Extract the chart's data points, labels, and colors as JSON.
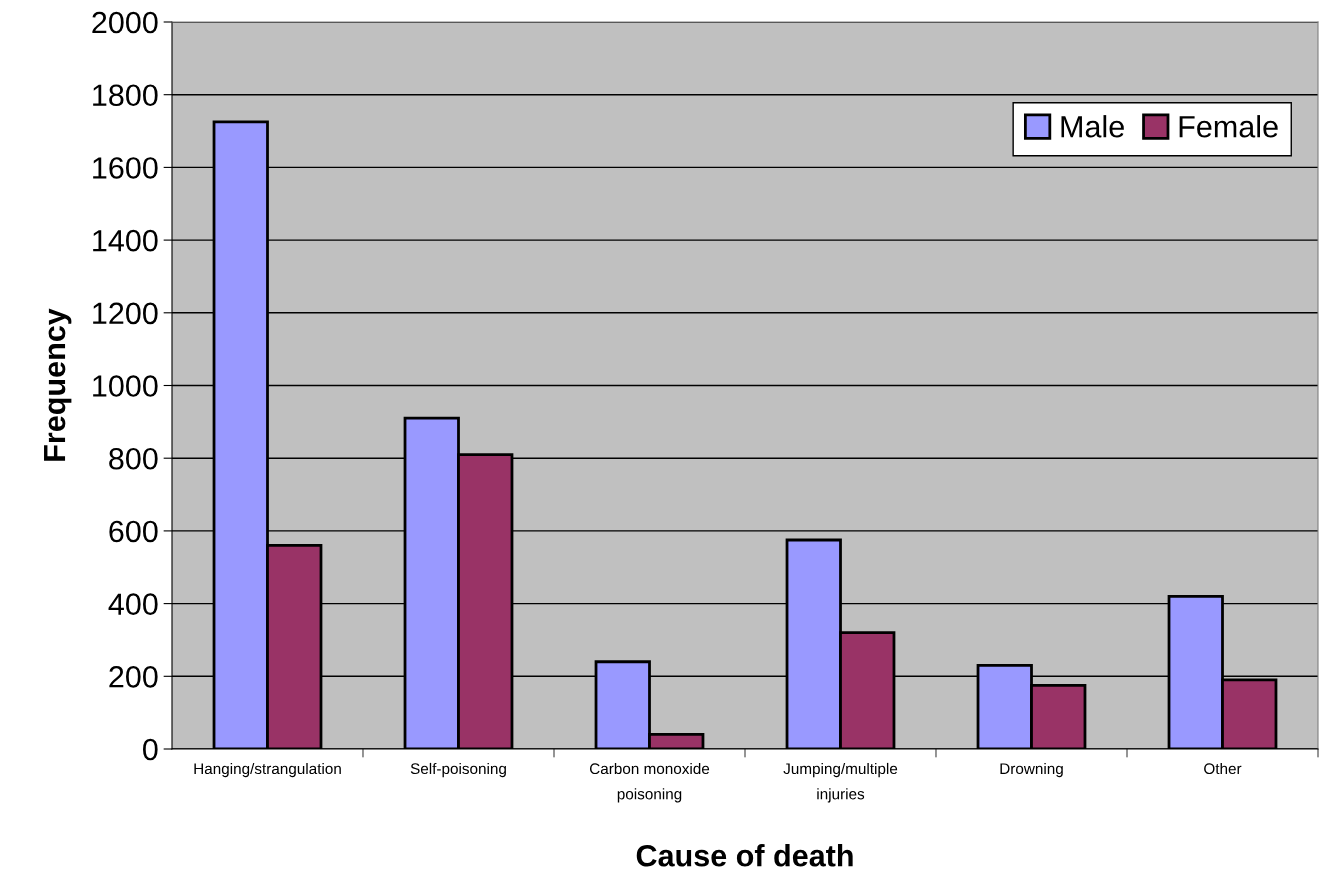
{
  "chart_data": {
    "type": "bar",
    "xlabel": "Cause of death",
    "ylabel": "Frequency",
    "categories": [
      "Hanging/strangulation",
      "Self-poisoning",
      "Carbon monoxide\npoisoning",
      "Jumping/multiple\ninjuries",
      "Drowning",
      "Other"
    ],
    "series": [
      {
        "name": "Male",
        "color": "#9999ff",
        "values": [
          1725,
          910,
          240,
          575,
          230,
          420
        ]
      },
      {
        "name": "Female",
        "color": "#993366",
        "values": [
          560,
          810,
          40,
          320,
          175,
          190
        ]
      }
    ],
    "ylim": [
      0,
      2000
    ],
    "yticks": [
      0,
      200,
      400,
      600,
      800,
      1000,
      1200,
      1400,
      1600,
      1800,
      2000
    ],
    "grid": "y",
    "legend": "top right"
  }
}
